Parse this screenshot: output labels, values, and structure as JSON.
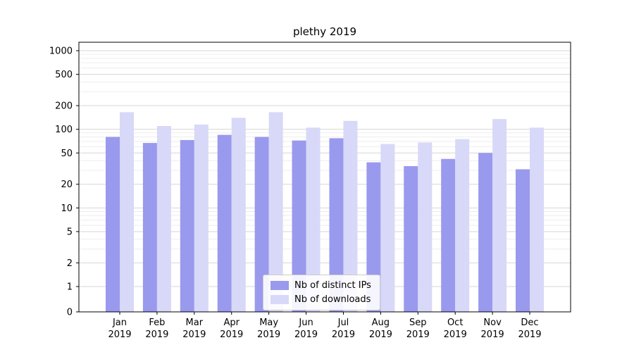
{
  "title": "plethy 2019",
  "legend": {
    "items": [
      {
        "label": "Nb of distinct IPs",
        "color": "#9999ee"
      },
      {
        "label": "Nb of downloads",
        "color": "#d8d8f8"
      }
    ]
  },
  "chart_data": {
    "type": "bar",
    "title": "plethy 2019",
    "categories": [
      "Jan 2019",
      "Feb 2019",
      "Mar 2019",
      "Apr 2019",
      "May 2019",
      "Jun 2019",
      "Jul 2019",
      "Aug 2019",
      "Sep 2019",
      "Oct 2019",
      "Nov 2019",
      "Dec 2019"
    ],
    "series": [
      {
        "name": "Nb of distinct IPs",
        "color": "#9999ee",
        "values": [
          80,
          67,
          73,
          85,
          80,
          72,
          77,
          38,
          34,
          42,
          50,
          31
        ]
      },
      {
        "name": "Nb of downloads",
        "color": "#d8d8f8",
        "values": [
          165,
          110,
          115,
          140,
          165,
          105,
          128,
          65,
          68,
          75,
          135,
          105
        ]
      }
    ],
    "xlabel": "",
    "ylabel": "",
    "yscale": "symlog",
    "y_ticks": [
      0,
      1,
      2,
      5,
      10,
      20,
      50,
      100,
      200,
      500,
      1000
    ],
    "ylim": [
      0,
      1300
    ],
    "grid": true,
    "legend_position": "lower center"
  }
}
